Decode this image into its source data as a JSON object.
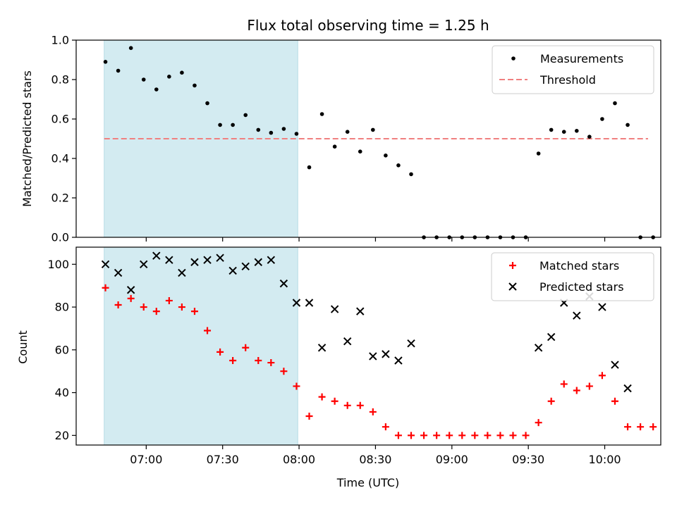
{
  "chart_data": {
    "title": "Flux total observing time = 1.25 h",
    "xlabel": "Time (UTC)",
    "x_unit": "minutes after 06:00 UTC",
    "x_ticks": [
      {
        "t": 60,
        "label": "07:00"
      },
      {
        "t": 90,
        "label": "07:30"
      },
      {
        "t": 120,
        "label": "08:00"
      },
      {
        "t": 150,
        "label": "08:30"
      },
      {
        "t": 180,
        "label": "09:00"
      },
      {
        "t": 210,
        "label": "09:30"
      },
      {
        "t": 240,
        "label": "10:00"
      }
    ],
    "xlim": [
      32.5,
      262
    ],
    "shaded_span": [
      43.5,
      119.5
    ],
    "shade_color": "#d3ebf1",
    "panels": [
      {
        "id": "ratio",
        "type": "scatter",
        "ylabel": "Matched/Predicted stars",
        "ylim": [
          0,
          1.0
        ],
        "y_ticks": [
          "0.0",
          "0.2",
          "0.4",
          "0.6",
          "0.8",
          "1.0"
        ],
        "y_tick_values": [
          0,
          0.2,
          0.4,
          0.6,
          0.8,
          1.0
        ],
        "legend": [
          {
            "label": "Measurements",
            "marker": "dot",
            "color": "#000000"
          },
          {
            "label": "Threshold",
            "marker": "dash",
            "color": "#f08080"
          }
        ],
        "threshold": {
          "y": 0.5,
          "x_start": 43.5,
          "x_end": 257
        },
        "series": [
          {
            "name": "Measurements",
            "color": "#000000",
            "points": [
              [
                44,
                0.89
              ],
              [
                49,
                0.845
              ],
              [
                54,
                0.96
              ],
              [
                59,
                0.8
              ],
              [
                64,
                0.75
              ],
              [
                69,
                0.815
              ],
              [
                74,
                0.835
              ],
              [
                79,
                0.77
              ],
              [
                84,
                0.68
              ],
              [
                89,
                0.57
              ],
              [
                94,
                0.57
              ],
              [
                99,
                0.62
              ],
              [
                104,
                0.545
              ],
              [
                109,
                0.53
              ],
              [
                114,
                0.55
              ],
              [
                119,
                0.525
              ],
              [
                124,
                0.355
              ],
              [
                129,
                0.625
              ],
              [
                134,
                0.46
              ],
              [
                139,
                0.535
              ],
              [
                144,
                0.435
              ],
              [
                149,
                0.545
              ],
              [
                154,
                0.415
              ],
              [
                159,
                0.365
              ],
              [
                164,
                0.32
              ],
              [
                169,
                0
              ],
              [
                174,
                0
              ],
              [
                179,
                0
              ],
              [
                184,
                0
              ],
              [
                189,
                0
              ],
              [
                194,
                0
              ],
              [
                199,
                0
              ],
              [
                204,
                0
              ],
              [
                209,
                0
              ],
              [
                214,
                0.425
              ],
              [
                219,
                0.545
              ],
              [
                224,
                0.535
              ],
              [
                229,
                0.54
              ],
              [
                234,
                0.51
              ],
              [
                239,
                0.6
              ],
              [
                244,
                0.68
              ],
              [
                249,
                0.57
              ],
              [
                254,
                0
              ],
              [
                259,
                0
              ]
            ]
          }
        ]
      },
      {
        "id": "counts",
        "type": "scatter",
        "ylabel": "Count",
        "ylim": [
          15.5,
          108
        ],
        "y_ticks": [
          "20",
          "40",
          "60",
          "80",
          "100"
        ],
        "y_tick_values": [
          20,
          40,
          60,
          80,
          100
        ],
        "legend": [
          {
            "label": "Matched stars",
            "marker": "plus",
            "color": "#ff0000"
          },
          {
            "label": "Predicted stars",
            "marker": "x",
            "color": "#000000"
          }
        ],
        "series": [
          {
            "name": "Matched stars",
            "marker": "plus",
            "color": "#ff0000",
            "points": [
              [
                44,
                89
              ],
              [
                49,
                81
              ],
              [
                54,
                84
              ],
              [
                59,
                80
              ],
              [
                64,
                78
              ],
              [
                69,
                83
              ],
              [
                74,
                80
              ],
              [
                79,
                78
              ],
              [
                84,
                69
              ],
              [
                89,
                59
              ],
              [
                94,
                55
              ],
              [
                99,
                61
              ],
              [
                104,
                55
              ],
              [
                109,
                54
              ],
              [
                114,
                50
              ],
              [
                119,
                43
              ],
              [
                124,
                29
              ],
              [
                129,
                38
              ],
              [
                134,
                36
              ],
              [
                139,
                34
              ],
              [
                144,
                34
              ],
              [
                149,
                31
              ],
              [
                154,
                24
              ],
              [
                159,
                20
              ],
              [
                164,
                20
              ],
              [
                169,
                20
              ],
              [
                174,
                20
              ],
              [
                179,
                20
              ],
              [
                184,
                20
              ],
              [
                189,
                20
              ],
              [
                194,
                20
              ],
              [
                199,
                20
              ],
              [
                204,
                20
              ],
              [
                209,
                20
              ],
              [
                214,
                26
              ],
              [
                219,
                36
              ],
              [
                224,
                44
              ],
              [
                229,
                41
              ],
              [
                234,
                43
              ],
              [
                239,
                48
              ],
              [
                244,
                36
              ],
              [
                249,
                24
              ],
              [
                254,
                24
              ],
              [
                259,
                24
              ]
            ]
          },
          {
            "name": "Predicted stars",
            "marker": "x",
            "color": "#000000",
            "points": [
              [
                44,
                100
              ],
              [
                49,
                96
              ],
              [
                54,
                88
              ],
              [
                59,
                100
              ],
              [
                64,
                104
              ],
              [
                69,
                102
              ],
              [
                74,
                96
              ],
              [
                79,
                101
              ],
              [
                84,
                102
              ],
              [
                89,
                103
              ],
              [
                94,
                97
              ],
              [
                99,
                99
              ],
              [
                104,
                101
              ],
              [
                109,
                102
              ],
              [
                114,
                91
              ],
              [
                119,
                82
              ],
              [
                124,
                82
              ],
              [
                129,
                61
              ],
              [
                134,
                79
              ],
              [
                139,
                64
              ],
              [
                144,
                78
              ],
              [
                149,
                57
              ],
              [
                154,
                58
              ],
              [
                159,
                55
              ],
              [
                164,
                63
              ],
              [
                214,
                61
              ],
              [
                219,
                66
              ],
              [
                224,
                82
              ],
              [
                229,
                76
              ],
              [
                234,
                85
              ],
              [
                239,
                80
              ],
              [
                244,
                53
              ],
              [
                249,
                42
              ]
            ]
          }
        ]
      }
    ]
  }
}
